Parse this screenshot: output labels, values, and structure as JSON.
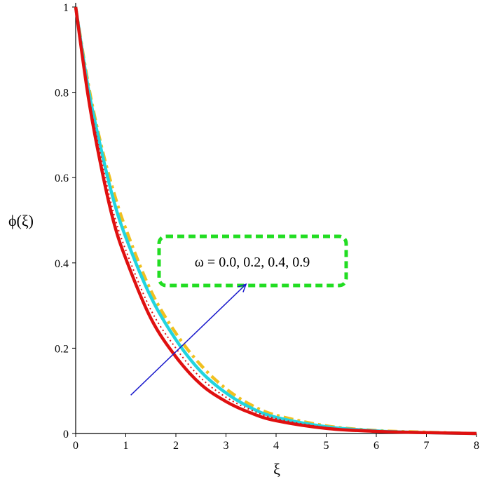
{
  "chart_data": {
    "type": "line",
    "xlabel": "ξ",
    "ylabel": "ϕ(ξ)",
    "xlim": [
      0,
      8
    ],
    "ylim": [
      0,
      1
    ],
    "x_ticks": [
      "0",
      "1",
      "2",
      "3",
      "4",
      "5",
      "6",
      "7",
      "8"
    ],
    "y_ticks": [
      "0",
      "0.2",
      "0.4",
      "0.6",
      "0.8",
      "1"
    ],
    "x": [
      0,
      0.25,
      0.5,
      0.75,
      1,
      1.5,
      2,
      2.5,
      3,
      3.5,
      4,
      5,
      6,
      7,
      8
    ],
    "series": [
      {
        "color": "#e01010",
        "style": "solid",
        "values": [
          1.0,
          0.79,
          0.63,
          0.5,
          0.41,
          0.27,
          0.18,
          0.115,
          0.075,
          0.048,
          0.03,
          0.012,
          0.005,
          0.002,
          0.0
        ]
      },
      {
        "color": "#e01010",
        "style": "dotted",
        "values": [
          1.0,
          0.8,
          0.65,
          0.52,
          0.43,
          0.29,
          0.2,
          0.13,
          0.085,
          0.055,
          0.035,
          0.014,
          0.006,
          0.002,
          0.0
        ]
      },
      {
        "color": "#22d4e0",
        "style": "solid",
        "values": [
          1.0,
          0.81,
          0.67,
          0.55,
          0.46,
          0.32,
          0.22,
          0.145,
          0.095,
          0.06,
          0.038,
          0.016,
          0.006,
          0.002,
          0.0
        ]
      },
      {
        "color": "#f0c020",
        "style": "dashdot",
        "values": [
          1.0,
          0.82,
          0.68,
          0.57,
          0.48,
          0.335,
          0.235,
          0.16,
          0.105,
          0.067,
          0.043,
          0.018,
          0.007,
          0.003,
          0.0
        ]
      }
    ],
    "annotation": {
      "text": "ω = 0.0, 0.2, 0.4, 0.9",
      "box_color": "#22dd22",
      "arrow_color": "#1a1acc",
      "arrow_from": [
        1.1,
        0.09
      ],
      "arrow_to": [
        3.4,
        0.35
      ]
    }
  }
}
